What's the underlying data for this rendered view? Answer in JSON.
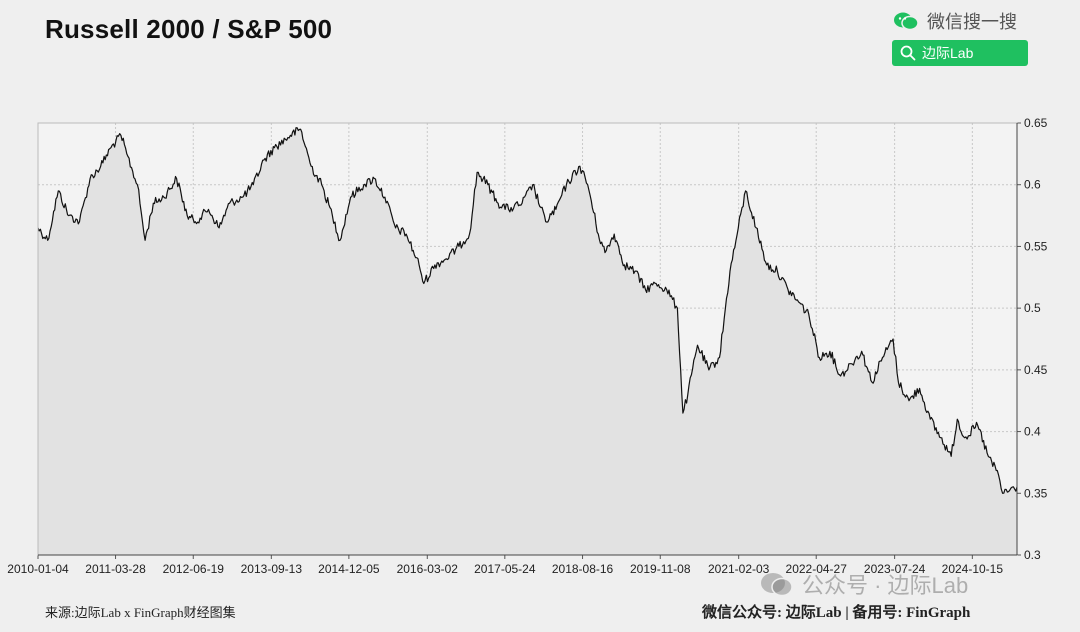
{
  "header": {
    "wechat_search": "微信搜一搜",
    "search_label": "边际Lab"
  },
  "footer": {
    "source": "来源:边际Lab x FinGraph财经图集",
    "right": "微信公众号: 边际Lab | 备用号: FinGraph",
    "watermark": "公众号 · 边际Lab"
  },
  "colors": {
    "line": "#111111",
    "area": "#e2e2e2",
    "grid": "#c8c8c8",
    "wechat_green": "#1fc060"
  },
  "chart_data": {
    "type": "area",
    "title": "Russell 2000 / S&P 500",
    "xlabel": "",
    "ylabel": "",
    "grid": true,
    "y_axis_side": "right",
    "xlim": [
      "2010-01-04",
      "2025-06-30"
    ],
    "ylim": [
      0.3,
      0.65
    ],
    "y_ticks": [
      0.3,
      0.35,
      0.4,
      0.45,
      0.5,
      0.55,
      0.6,
      0.65
    ],
    "y_tick_labels": [
      "0.3",
      "0.35",
      "0.4",
      "0.45",
      "0.5",
      "0.55",
      "0.6",
      "0.65"
    ],
    "x_ticks": [
      "2010-01-04",
      "2011-03-28",
      "2012-06-19",
      "2013-09-13",
      "2014-12-05",
      "2016-03-02",
      "2017-05-24",
      "2018-08-16",
      "2019-11-08",
      "2021-02-03",
      "2022-04-27",
      "2023-07-24",
      "2024-10-15"
    ],
    "series": [
      {
        "values": [
          [
            "2010-01-04",
            0.565
          ],
          [
            "2010-03-01",
            0.555
          ],
          [
            "2010-05-01",
            0.595
          ],
          [
            "2010-07-01",
            0.575
          ],
          [
            "2010-09-01",
            0.57
          ],
          [
            "2010-11-01",
            0.605
          ],
          [
            "2011-01-01",
            0.615
          ],
          [
            "2011-03-01",
            0.63
          ],
          [
            "2011-04-28",
            0.64
          ],
          [
            "2011-06-01",
            0.625
          ],
          [
            "2011-08-01",
            0.6
          ],
          [
            "2011-09-15",
            0.555
          ],
          [
            "2011-11-01",
            0.585
          ],
          [
            "2012-01-01",
            0.59
          ],
          [
            "2012-03-15",
            0.605
          ],
          [
            "2012-05-15",
            0.575
          ],
          [
            "2012-07-01",
            0.57
          ],
          [
            "2012-09-15",
            0.58
          ],
          [
            "2012-11-15",
            0.565
          ],
          [
            "2013-01-15",
            0.585
          ],
          [
            "2013-04-01",
            0.59
          ],
          [
            "2013-06-01",
            0.6
          ],
          [
            "2013-08-01",
            0.62
          ],
          [
            "2013-10-01",
            0.63
          ],
          [
            "2014-01-01",
            0.64
          ],
          [
            "2014-03-01",
            0.645
          ],
          [
            "2014-05-01",
            0.615
          ],
          [
            "2014-07-01",
            0.6
          ],
          [
            "2014-09-01",
            0.575
          ],
          [
            "2014-10-15",
            0.555
          ],
          [
            "2014-12-15",
            0.59
          ],
          [
            "2015-03-01",
            0.6
          ],
          [
            "2015-05-01",
            0.605
          ],
          [
            "2015-07-01",
            0.59
          ],
          [
            "2015-09-01",
            0.565
          ],
          [
            "2015-11-01",
            0.56
          ],
          [
            "2016-01-15",
            0.535
          ],
          [
            "2016-02-11",
            0.52
          ],
          [
            "2016-04-15",
            0.535
          ],
          [
            "2016-06-20",
            0.54
          ],
          [
            "2016-09-01",
            0.55
          ],
          [
            "2016-11-01",
            0.56
          ],
          [
            "2016-12-15",
            0.61
          ],
          [
            "2017-02-15",
            0.6
          ],
          [
            "2017-04-15",
            0.585
          ],
          [
            "2017-06-15",
            0.58
          ],
          [
            "2017-09-01",
            0.585
          ],
          [
            "2017-11-01",
            0.6
          ],
          [
            "2018-01-15",
            0.57
          ],
          [
            "2018-03-15",
            0.58
          ],
          [
            "2018-05-15",
            0.6
          ],
          [
            "2018-08-01",
            0.615
          ],
          [
            "2018-09-15",
            0.6
          ],
          [
            "2018-11-15",
            0.56
          ],
          [
            "2018-12-24",
            0.545
          ],
          [
            "2019-02-15",
            0.56
          ],
          [
            "2019-04-15",
            0.535
          ],
          [
            "2019-06-15",
            0.53
          ],
          [
            "2019-08-15",
            0.515
          ],
          [
            "2019-10-15",
            0.52
          ],
          [
            "2019-12-15",
            0.515
          ],
          [
            "2020-02-15",
            0.5
          ],
          [
            "2020-03-18",
            0.415
          ],
          [
            "2020-04-15",
            0.43
          ],
          [
            "2020-06-10",
            0.47
          ],
          [
            "2020-08-15",
            0.45
          ],
          [
            "2020-10-15",
            0.46
          ],
          [
            "2020-12-15",
            0.53
          ],
          [
            "2021-02-01",
            0.565
          ],
          [
            "2021-03-15",
            0.595
          ],
          [
            "2021-05-15",
            0.565
          ],
          [
            "2021-07-15",
            0.535
          ],
          [
            "2021-09-15",
            0.53
          ],
          [
            "2021-11-15",
            0.515
          ],
          [
            "2022-01-15",
            0.505
          ],
          [
            "2022-03-15",
            0.495
          ],
          [
            "2022-05-15",
            0.46
          ],
          [
            "2022-07-15",
            0.465
          ],
          [
            "2022-09-15",
            0.445
          ],
          [
            "2022-11-15",
            0.455
          ],
          [
            "2023-01-15",
            0.465
          ],
          [
            "2023-03-15",
            0.44
          ],
          [
            "2023-05-15",
            0.46
          ],
          [
            "2023-07-15",
            0.475
          ],
          [
            "2023-08-15",
            0.44
          ],
          [
            "2023-10-15",
            0.425
          ],
          [
            "2023-12-15",
            0.435
          ],
          [
            "2024-02-15",
            0.41
          ],
          [
            "2024-04-15",
            0.395
          ],
          [
            "2024-06-15",
            0.38
          ],
          [
            "2024-07-20",
            0.41
          ],
          [
            "2024-09-01",
            0.395
          ],
          [
            "2024-11-15",
            0.405
          ],
          [
            "2025-01-15",
            0.38
          ],
          [
            "2025-03-15",
            0.365
          ],
          [
            "2025-04-08",
            0.35
          ],
          [
            "2025-06-30",
            0.355
          ]
        ]
      }
    ]
  }
}
